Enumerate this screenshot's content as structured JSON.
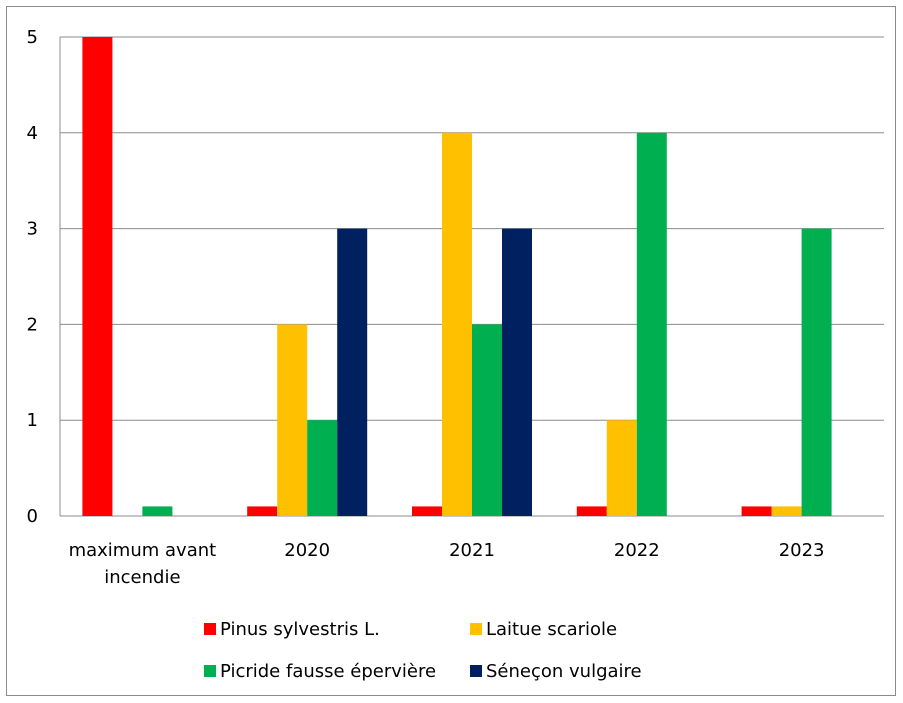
{
  "chart_data": {
    "type": "bar",
    "categories": [
      [
        "maximum avant",
        "incendie"
      ],
      [
        "2020"
      ],
      [
        "2021"
      ],
      [
        "2022"
      ],
      [
        "2023"
      ]
    ],
    "ylim": [
      0,
      5
    ],
    "yticks": [
      0,
      1,
      2,
      3,
      4,
      5
    ],
    "grid": true,
    "legend_position": "bottom",
    "series": [
      {
        "name": "Pinus sylvestris L.",
        "color": "#ff0000",
        "values": [
          5,
          0.1,
          0.1,
          0.1,
          0.1
        ]
      },
      {
        "name": "Laitue scariole",
        "color": "#ffc000",
        "values": [
          0,
          2,
          4,
          1,
          0.1
        ]
      },
      {
        "name": "Picride fausse épervière",
        "color": "#00b050",
        "values": [
          0.1,
          1,
          2,
          4,
          3
        ]
      },
      {
        "name": "Séneçon vulgaire",
        "color": "#002060",
        "values": [
          0,
          3,
          3,
          0,
          0
        ]
      }
    ]
  }
}
